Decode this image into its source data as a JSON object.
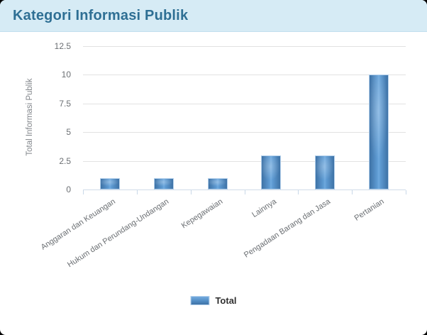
{
  "header": {
    "title": "Kategori Informasi Publik"
  },
  "chart_data": {
    "type": "bar",
    "title": "Kategori Informasi Publik",
    "categories": [
      "Anggaran dan Keuangan",
      "Hukum dan Perundang-Undangan",
      "Kepegawaian",
      "Lainnya",
      "Pengadaan Barang dan Jasa",
      "Pertanian"
    ],
    "series": [
      {
        "name": "Total",
        "values": [
          1,
          1,
          1,
          3,
          3,
          10
        ]
      }
    ],
    "xlabel": "",
    "ylabel": "Total Informasi Publik",
    "ylim": [
      0,
      12.5
    ],
    "y_ticks": [
      "0",
      "2.5",
      "5",
      "7.5",
      "10",
      "12.5"
    ],
    "grid": true,
    "legend_position": "bottom",
    "colors": {
      "header_bg": "#d6ebf5",
      "header_border": "#c2dfee",
      "title_text": "#2e6f94",
      "bar_edge": "#3e72a6",
      "bar_highlight": "#6fa9de",
      "bar_border": "#b5d1ec",
      "gridline": "#e2e2e2",
      "axis_line": "#d0dce8",
      "label_text": "#6b6f73"
    }
  }
}
